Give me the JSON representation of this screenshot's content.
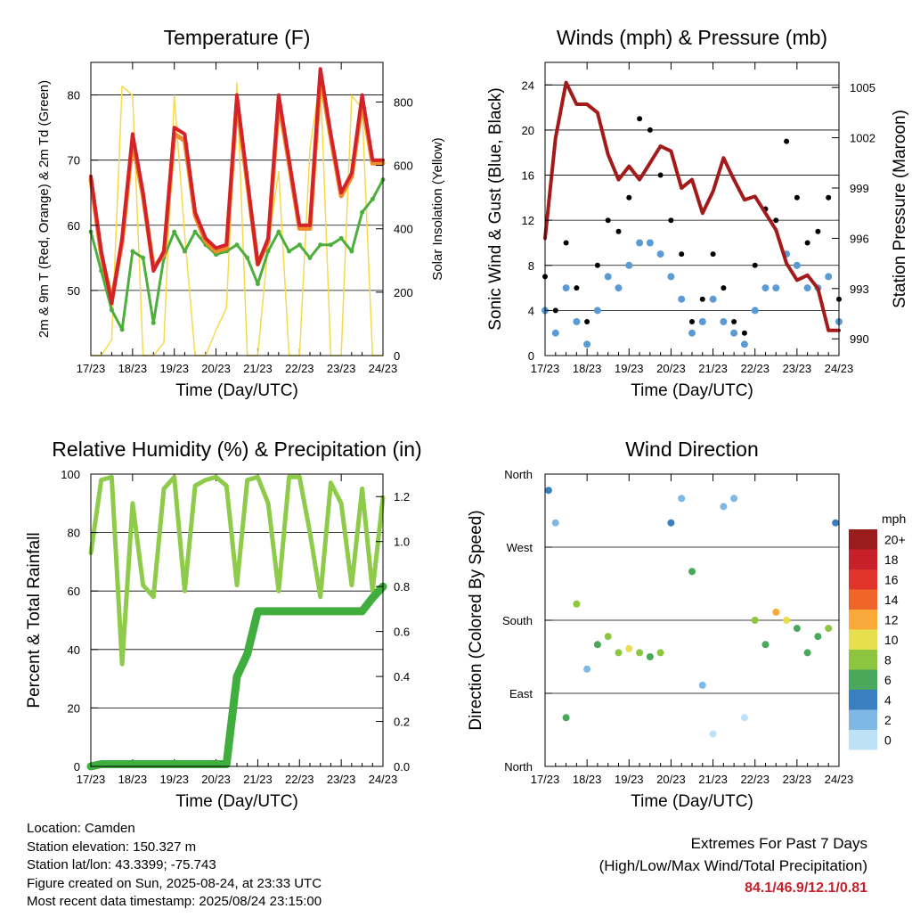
{
  "x_ticks": [
    "17/23",
    "18/23",
    "19/23",
    "20/23",
    "21/23",
    "22/23",
    "23/23",
    "24/23"
  ],
  "x_label": "Time (Day/UTC)",
  "colors": {
    "temp_2m": "#d4222a",
    "temp_9m": "#f08a2a",
    "dewpoint": "#4caf3c",
    "solar": "#f7d94c",
    "wind_sonic": "#5b9bd5",
    "gust": "#000000",
    "pressure": "#a31a1a",
    "rh": "#8fcb4a",
    "precip": "#3fae3f"
  },
  "chart_data": [
    {
      "type": "line",
      "title": "Temperature (F)",
      "xlabel": "Time (Day/UTC)",
      "ylabel": "2m & 9m T (Red, Orange) & 2m Td (Green)",
      "y2label": "Solar Insolation (Yellow)",
      "ylim": [
        40,
        85
      ],
      "y2lim": [
        0,
        925
      ],
      "yticks": [
        50,
        60,
        70,
        80
      ],
      "y2ticks": [
        0,
        200,
        400,
        600,
        800
      ],
      "x": [
        0,
        6,
        12,
        18,
        24,
        30,
        36,
        42,
        48,
        54,
        60,
        66,
        72,
        78,
        84,
        90,
        96,
        102,
        108,
        114,
        120,
        126,
        132,
        138,
        144,
        150,
        156,
        162,
        168
      ],
      "series": [
        {
          "name": "2m T",
          "values": [
            67.5,
            56,
            48,
            58,
            74,
            65,
            53,
            56,
            75,
            74,
            62,
            58,
            56.5,
            57,
            80,
            67,
            54,
            58,
            80,
            70,
            60,
            60,
            84,
            74,
            65,
            68,
            80,
            70,
            70
          ]
        },
        {
          "name": "9m T",
          "values": [
            67,
            55.5,
            48.5,
            57.5,
            73,
            64.5,
            53.5,
            55.5,
            74,
            73,
            61.5,
            57.5,
            56,
            56.5,
            79,
            66.5,
            54,
            57.5,
            79,
            69.5,
            59.5,
            59.5,
            83,
            73.5,
            64.5,
            67.5,
            79,
            69.5,
            69.5
          ]
        },
        {
          "name": "2m Td",
          "values": [
            59,
            53,
            47,
            44,
            56,
            55,
            45,
            55,
            59,
            56,
            59,
            57,
            55.5,
            56,
            57,
            55,
            51,
            56,
            59,
            56,
            57,
            55,
            57,
            57,
            58,
            56,
            62,
            64,
            67
          ]
        },
        {
          "name": "Solar",
          "values": [
            0,
            0,
            50,
            850,
            820,
            0,
            0,
            40,
            820,
            380,
            0,
            0,
            80,
            150,
            860,
            0,
            0,
            350,
            580,
            0,
            0,
            650,
            880,
            0,
            0,
            820,
            780,
            0,
            0
          ]
        }
      ]
    },
    {
      "type": "scatter",
      "title": "Winds (mph) & Pressure (mb)",
      "xlabel": "Time (Day/UTC)",
      "ylabel": "Sonic Wind & Gust (Blue, Black)",
      "y2label": "Station Pressure (Maroon)",
      "ylim": [
        0,
        26
      ],
      "y2lim": [
        989,
        1006.5
      ],
      "yticks": [
        0,
        4,
        8,
        12,
        16,
        20,
        24
      ],
      "y2ticks": [
        990,
        993,
        996,
        999,
        1002,
        1005
      ],
      "x": [
        0,
        6,
        12,
        18,
        24,
        30,
        36,
        42,
        48,
        54,
        60,
        66,
        72,
        78,
        84,
        90,
        96,
        102,
        108,
        114,
        120,
        126,
        132,
        138,
        144,
        150,
        156,
        162,
        168
      ],
      "series": [
        {
          "name": "Sonic Wind",
          "values": [
            4,
            2,
            6,
            3,
            1,
            4,
            7,
            6,
            8,
            10,
            10,
            9,
            7,
            5,
            2,
            3,
            5,
            3,
            2,
            1,
            4,
            6,
            6,
            9,
            8,
            6,
            6,
            7,
            3
          ]
        },
        {
          "name": "Gust",
          "values": [
            7,
            4,
            10,
            6,
            3,
            8,
            12,
            11,
            14,
            21,
            20,
            16,
            12,
            9,
            3,
            5,
            9,
            6,
            3,
            2,
            8,
            13,
            12,
            19,
            14,
            10,
            11,
            14,
            5
          ]
        },
        {
          "name": "Pressure",
          "values": [
            996,
            1002,
            1005.3,
            1004,
            1004,
            1003.5,
            1001,
            999.5,
            1000.3,
            999.5,
            1000.5,
            1001.5,
            1001.2,
            999,
            999.5,
            997.5,
            998.8,
            1000.8,
            999.5,
            998.3,
            998.5,
            997.5,
            996.5,
            994.5,
            993.5,
            993.8,
            993,
            990.5,
            990.5
          ]
        }
      ]
    },
    {
      "type": "line",
      "title": "Relative Humidity (%) & Precipitation (in)",
      "xlabel": "Time (Day/UTC)",
      "ylabel": "Percent & Total Rainfall",
      "ylim": [
        0,
        100
      ],
      "y2lim": [
        0,
        1.3
      ],
      "yticks": [
        0,
        20,
        40,
        60,
        80,
        100
      ],
      "y2ticks": [
        0.0,
        0.2,
        0.4,
        0.6,
        0.8,
        1.0,
        1.2
      ],
      "x": [
        0,
        6,
        12,
        18,
        24,
        30,
        36,
        42,
        48,
        54,
        60,
        66,
        72,
        78,
        84,
        90,
        96,
        102,
        108,
        114,
        120,
        126,
        132,
        138,
        144,
        150,
        156,
        162,
        168
      ],
      "series": [
        {
          "name": "RH",
          "values": [
            73,
            98,
            99,
            35,
            90,
            62,
            58,
            95,
            99,
            60,
            96,
            98,
            99,
            96,
            62,
            98,
            99,
            90,
            60,
            99,
            99,
            80,
            58,
            97,
            90,
            62,
            95,
            60,
            92
          ]
        },
        {
          "name": "Precipitation",
          "values": [
            0,
            0.01,
            0.01,
            0.01,
            0.01,
            0.01,
            0.01,
            0.01,
            0.01,
            0.01,
            0.01,
            0.01,
            0.01,
            0.01,
            0.4,
            0.5,
            0.69,
            0.69,
            0.69,
            0.69,
            0.69,
            0.69,
            0.69,
            0.69,
            0.69,
            0.69,
            0.69,
            0.75,
            0.8
          ]
        }
      ]
    },
    {
      "type": "scatter",
      "title": "Wind Direction",
      "xlabel": "Time (Day/UTC)",
      "ylabel": "Direction (Colored By Speed)",
      "ylim": [
        0,
        360
      ],
      "yticks": [
        "North",
        "East",
        "South",
        "West",
        "North"
      ],
      "x": [
        2,
        6,
        12,
        18,
        24,
        30,
        36,
        42,
        48,
        54,
        60,
        66,
        72,
        78,
        84,
        90,
        96,
        102,
        108,
        114,
        120,
        126,
        132,
        138,
        144,
        150,
        156,
        162,
        166
      ],
      "series": [
        {
          "name": "Direction",
          "values": [
            340,
            300,
            60,
            200,
            120,
            150,
            160,
            140,
            145,
            140,
            135,
            140,
            300,
            330,
            240,
            100,
            40,
            320,
            330,
            60,
            180,
            150,
            190,
            180,
            170,
            140,
            160,
            170,
            300
          ]
        },
        {
          "name": "Speed",
          "values": [
            3,
            2,
            5,
            7,
            2,
            6,
            8,
            7,
            9,
            8,
            6,
            7,
            4,
            2,
            5,
            1,
            0,
            1,
            1,
            0,
            8,
            6,
            11,
            9,
            6,
            6,
            5,
            7,
            3
          ]
        }
      ],
      "legend_title": "mph",
      "legend_labels": [
        "20+",
        "18",
        "16",
        "14",
        "12",
        "10",
        "8",
        "6",
        "4",
        "2",
        "0"
      ],
      "legend_colors": [
        "#9b1c1c",
        "#c8202a",
        "#e0352a",
        "#f0662a",
        "#f9a83a",
        "#e8df4f",
        "#8cc63f",
        "#4aa85c",
        "#3a7fc0",
        "#7fb8e5",
        "#bde2f7"
      ],
      "legend_position": "right"
    }
  ],
  "info": {
    "location": "Location: Camden",
    "elevation": "Station elevation: 150.327 m",
    "latlon": "Station lat/lon: 43.3399; -75.743",
    "created": "Figure created on Sun, 2025-08-24, at 23:33 UTC",
    "timestamp": "Most recent data timestamp: 2025/08/24 23:15:00"
  },
  "extremes": {
    "line1": "Extremes For Past 7 Days",
    "line2": "(High/Low/Max Wind/Total Precipitation)",
    "values": "84.1/46.9/12.1/0.81"
  }
}
